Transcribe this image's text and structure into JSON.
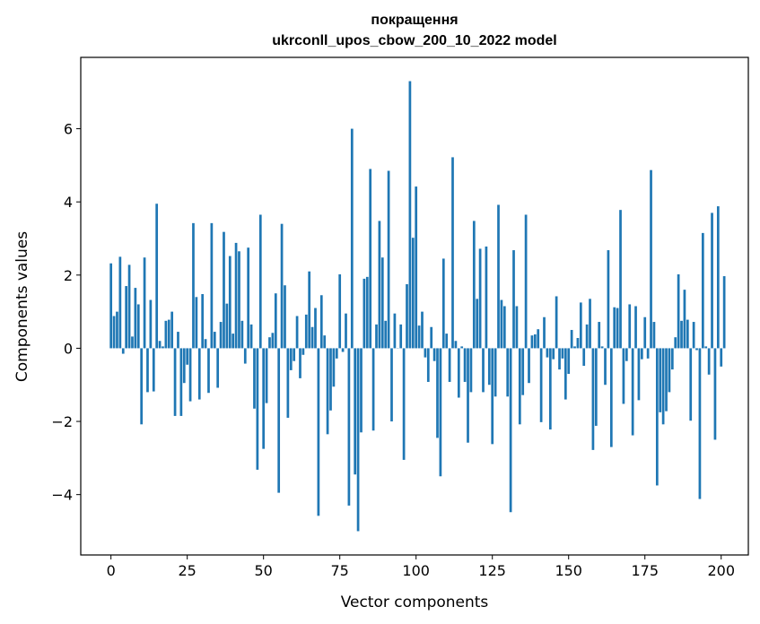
{
  "chart_data": {
    "type": "bar",
    "title_line1": "покращення",
    "title_line2": "ukrconll_upos_cbow_200_10_2022 model",
    "xlabel": "Vector components",
    "ylabel": "Components values",
    "xlim": [
      -9.9,
      208.9
    ],
    "ylim": [
      -5.65,
      7.95
    ],
    "xticks": [
      0,
      25,
      50,
      75,
      100,
      125,
      150,
      175,
      200
    ],
    "yticks": [
      -4,
      -2,
      0,
      2,
      4,
      6
    ],
    "ytick_labels": [
      "−4",
      "−2",
      "0",
      "2",
      "4",
      "6"
    ],
    "bar_color": "#1f77b4",
    "values": [
      2.32,
      0.88,
      1.0,
      2.5,
      -0.15,
      1.7,
      2.28,
      0.32,
      1.65,
      1.2,
      -2.08,
      2.48,
      -1.2,
      1.32,
      -1.18,
      3.95,
      0.2,
      0.05,
      0.75,
      0.78,
      1.0,
      -1.85,
      0.45,
      -1.85,
      -0.95,
      -0.45,
      -1.45,
      3.42,
      1.4,
      -1.4,
      1.48,
      0.25,
      -1.22,
      3.42,
      0.45,
      -1.08,
      0.72,
      3.18,
      1.22,
      2.52,
      0.4,
      2.88,
      2.65,
      0.75,
      -0.42,
      2.75,
      0.65,
      -1.65,
      -3.32,
      3.65,
      -2.75,
      -1.5,
      0.3,
      0.42,
      1.5,
      -3.95,
      3.4,
      1.72,
      -1.9,
      -0.6,
      -0.35,
      0.88,
      -0.82,
      -0.18,
      0.92,
      2.1,
      0.58,
      1.1,
      -4.58,
      1.45,
      0.35,
      -2.35,
      -1.7,
      -1.05,
      -0.28,
      2.02,
      -0.1,
      0.95,
      -4.3,
      6.0,
      -3.45,
      -5.0,
      -2.3,
      1.9,
      1.95,
      4.9,
      -2.25,
      0.65,
      3.48,
      2.48,
      0.75,
      4.85,
      -2.0,
      0.95,
      0.0,
      0.65,
      -3.05,
      1.75,
      7.3,
      3.02,
      4.42,
      0.62,
      1.0,
      -0.25,
      -0.92,
      0.58,
      -0.35,
      -2.45,
      -3.5,
      2.45,
      0.4,
      -0.92,
      5.22,
      0.2,
      -1.35,
      0.05,
      -0.92,
      -2.58,
      -1.2,
      3.48,
      1.35,
      2.72,
      -1.2,
      2.78,
      -1.0,
      -2.62,
      -1.32,
      3.92,
      1.32,
      1.15,
      -1.32,
      -4.48,
      2.68,
      1.15,
      -2.08,
      -1.28,
      3.65,
      -0.95,
      0.35,
      0.38,
      0.52,
      -2.02,
      0.85,
      -0.25,
      -2.22,
      -0.3,
      1.42,
      -0.58,
      -0.28,
      -1.4,
      -0.7,
      0.5,
      0.05,
      0.28,
      1.25,
      -0.48,
      0.65,
      1.35,
      -2.78,
      -2.12,
      0.72,
      0.05,
      -1.0,
      2.68,
      -2.7,
      1.12,
      1.1,
      3.78,
      -1.52,
      -0.35,
      1.2,
      -2.38,
      1.15,
      -1.42,
      -0.3,
      0.85,
      -0.28,
      4.87,
      0.72,
      -3.75,
      -1.75,
      -2.08,
      -1.72,
      -1.2,
      -0.58,
      0.3,
      2.02,
      0.75,
      1.6,
      0.78,
      -1.98,
      0.72,
      -0.05,
      -4.12,
      3.15,
      0.05,
      -0.72,
      3.7,
      -2.5,
      3.88,
      -0.5,
      1.97
    ]
  }
}
